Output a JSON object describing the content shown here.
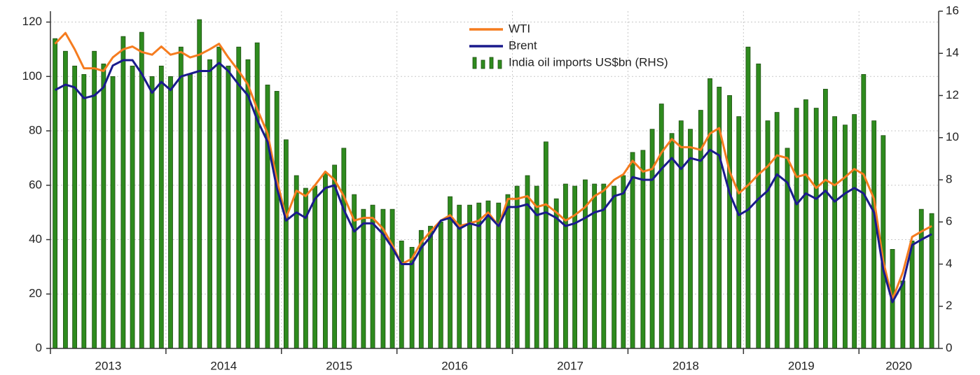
{
  "chart_data": {
    "type": "combo",
    "x": [
      2013.04,
      2013.13,
      2013.21,
      2013.29,
      2013.38,
      2013.46,
      2013.54,
      2013.63,
      2013.71,
      2013.79,
      2013.88,
      2013.96,
      2014.04,
      2014.13,
      2014.21,
      2014.29,
      2014.38,
      2014.46,
      2014.54,
      2014.63,
      2014.71,
      2014.79,
      2014.88,
      2014.96,
      2015.04,
      2015.13,
      2015.21,
      2015.29,
      2015.38,
      2015.46,
      2015.54,
      2015.63,
      2015.71,
      2015.79,
      2015.88,
      2015.96,
      2016.04,
      2016.13,
      2016.21,
      2016.29,
      2016.38,
      2016.46,
      2016.54,
      2016.63,
      2016.71,
      2016.79,
      2016.88,
      2016.96,
      2017.04,
      2017.13,
      2017.21,
      2017.29,
      2017.38,
      2017.46,
      2017.54,
      2017.63,
      2017.71,
      2017.79,
      2017.88,
      2017.96,
      2018.04,
      2018.13,
      2018.21,
      2018.29,
      2018.38,
      2018.46,
      2018.54,
      2018.63,
      2018.71,
      2018.79,
      2018.88,
      2018.96,
      2019.04,
      2019.13,
      2019.21,
      2019.29,
      2019.38,
      2019.46,
      2019.54,
      2019.63,
      2019.71,
      2019.79,
      2019.88,
      2019.96,
      2020.04,
      2020.13,
      2020.21,
      2020.29,
      2020.38,
      2020.46,
      2020.54,
      2020.63
    ],
    "series": [
      {
        "name": "India oil imports US$bn (RHS)",
        "kind": "bar",
        "axis": "y2",
        "color": "#2e8b1e",
        "values": [
          14.7,
          14.1,
          13.4,
          13.0,
          14.1,
          13.5,
          12.9,
          14.8,
          13.4,
          15.0,
          12.9,
          13.4,
          12.9,
          14.3,
          13.0,
          15.6,
          13.7,
          14.3,
          13.4,
          14.3,
          13.7,
          14.5,
          12.5,
          12.2,
          9.9,
          8.2,
          7.6,
          7.7,
          8.3,
          8.7,
          9.5,
          7.3,
          6.6,
          6.8,
          6.6,
          6.6,
          5.1,
          4.8,
          5.6,
          5.8,
          6.0,
          7.2,
          6.8,
          6.8,
          6.9,
          7.0,
          6.9,
          7.3,
          7.7,
          8.2,
          7.7,
          9.8,
          7.1,
          7.8,
          7.7,
          8.0,
          7.8,
          7.8,
          7.7,
          8.2,
          9.3,
          9.4,
          10.4,
          11.6,
          10.2,
          10.8,
          10.4,
          11.3,
          12.8,
          12.4,
          12.0,
          11.0,
          14.3,
          13.5,
          10.8,
          11.2,
          9.5,
          11.4,
          11.8,
          11.4,
          12.3,
          11.0,
          10.6,
          11.1,
          13.0,
          10.8,
          10.1,
          4.7,
          3.2,
          5.1,
          6.6,
          6.4
        ]
      },
      {
        "name": "WTI",
        "kind": "line",
        "color": "#f57c1f",
        "values": [
          112,
          116,
          110,
          103,
          103,
          102,
          107,
          110,
          111,
          109,
          108,
          111,
          108,
          109,
          107,
          108,
          110,
          112,
          107,
          102,
          97,
          88,
          79,
          62,
          48,
          58,
          56,
          60,
          65,
          62,
          56,
          47,
          48,
          48,
          44,
          38,
          31,
          33,
          39,
          43,
          47,
          49,
          45,
          46,
          47,
          50,
          45,
          55,
          55,
          56,
          52,
          53,
          50,
          47,
          49,
          52,
          56,
          58,
          62,
          64,
          69,
          65,
          66,
          72,
          77,
          74,
          74,
          73,
          79,
          81,
          65,
          57,
          60,
          64,
          67,
          71,
          70,
          63,
          64,
          59,
          62,
          60,
          63,
          66,
          64,
          55,
          32,
          18,
          28,
          41,
          43,
          45
        ]
      },
      {
        "name": "Brent",
        "kind": "line",
        "color": "#1a1a8c",
        "values": [
          95,
          97,
          96,
          92,
          93,
          96,
          104,
          106,
          106,
          101,
          94,
          98,
          95,
          100,
          101,
          102,
          102,
          105,
          102,
          97,
          93,
          84,
          76,
          59,
          47,
          50,
          48,
          55,
          59,
          60,
          51,
          43,
          46,
          46,
          42,
          37,
          31,
          31,
          37,
          41,
          47,
          48,
          44,
          46,
          45,
          49,
          45,
          52,
          52,
          53,
          49,
          50,
          48,
          45,
          46,
          48,
          50,
          51,
          56,
          57,
          63,
          62,
          62,
          66,
          70,
          66,
          70,
          69,
          73,
          71,
          57,
          49,
          51,
          55,
          58,
          64,
          61,
          53,
          57,
          55,
          58,
          54,
          57,
          59,
          57,
          50,
          29,
          17,
          24,
          38,
          40,
          42
        ]
      }
    ],
    "xlim": [
      2013,
      2020.69
    ],
    "xticks": [
      {
        "value": 2013,
        "label": "2013"
      },
      {
        "value": 2014,
        "label": "2014"
      },
      {
        "value": 2015,
        "label": "2015"
      },
      {
        "value": 2016,
        "label": "2016"
      },
      {
        "value": 2017,
        "label": "2017"
      },
      {
        "value": 2018,
        "label": "2018"
      },
      {
        "value": 2019,
        "label": "2019"
      },
      {
        "value": 2020,
        "label": "2020"
      }
    ],
    "ylim": [
      0,
      124
    ],
    "yticks": [
      0,
      20,
      40,
      60,
      80,
      100,
      120
    ],
    "y2lim": [
      0,
      16
    ],
    "y2ticks": [
      0,
      2,
      4,
      6,
      8,
      10,
      12,
      14,
      16
    ],
    "grid": true,
    "legend": "top-center"
  }
}
